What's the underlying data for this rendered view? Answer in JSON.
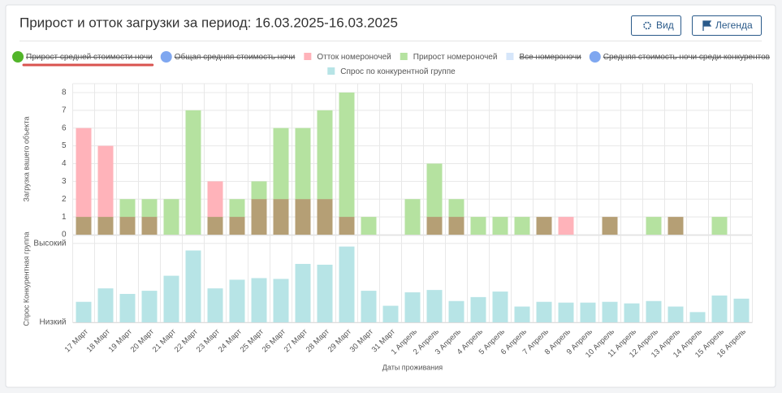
{
  "header": {
    "title": "Прирост и отток загрузки за период: 16.03.2025-16.03.2025",
    "buttons": [
      "Вид",
      "Легенда"
    ]
  },
  "chart_data": [
    {
      "type": "bar",
      "ylabel": "Загрузка вашего объекта",
      "ylim": [
        0,
        8.5
      ],
      "yticks": [
        0,
        1,
        2,
        3,
        4,
        5,
        6,
        7,
        8
      ],
      "grid": true,
      "series": [
        {
          "name": "Прирост средней стоимости ночи",
          "color": "#52b52a",
          "marker": "circle",
          "hidden": true
        },
        {
          "name": "Общая средняя стоимость ночи",
          "color": "#7fa7f0",
          "marker": "circle",
          "hidden": true
        },
        {
          "name": "Отток номероночей",
          "color": "#ffb3ba",
          "marker": "square",
          "values": [
            6,
            5,
            1,
            1,
            0,
            0,
            3,
            1,
            2,
            2,
            2,
            2,
            1,
            0,
            0,
            0,
            1,
            1,
            0,
            0,
            0,
            1,
            1,
            0,
            1,
            0,
            0,
            1,
            0,
            0,
            0
          ]
        },
        {
          "name": "Прирост номероночей",
          "color": "#b5e2a0",
          "marker": "square",
          "values": [
            1,
            1,
            2,
            2,
            2,
            7,
            1,
            2,
            3,
            6,
            6,
            7,
            8,
            1,
            0,
            2,
            4,
            2,
            1,
            1,
            1,
            1,
            0,
            0,
            1,
            0,
            1,
            1,
            0,
            1,
            0
          ]
        },
        {
          "name": "Все номероночи",
          "color": "#d6e6fa",
          "marker": "square",
          "hidden": true
        },
        {
          "name": "Средняя стоимость ночи среди конкурентов",
          "color": "#7fa7f0",
          "marker": "circle",
          "hidden": true
        }
      ]
    },
    {
      "type": "bar",
      "ylabel": "Спрос Конкурентная группа",
      "xlabel": "Даты проживания",
      "categories": [
        "17 Март",
        "18 Март",
        "19 Март",
        "20 Март",
        "21 Март",
        "22 Март",
        "23 Март",
        "24 Март",
        "25 Март",
        "26 Март",
        "27 Март",
        "28 Март",
        "29 Март",
        "30 Март",
        "31 Март",
        "1 Апрель",
        "2 Апрель",
        "3 Апрель",
        "4 Апрель",
        "5 Апрель",
        "6 Апрель",
        "7 Апрель",
        "8 Апрель",
        "9 Апрель",
        "10 Апрель",
        "11 Апрель",
        "12 Апрель",
        "13 Апрель",
        "14 Апрель",
        "15 Апрель",
        "16 Апрель"
      ],
      "ylim": [
        0,
        110
      ],
      "yticks": [
        {
          "value": 100,
          "label": "Высокий"
        },
        {
          "value": 0,
          "label": "Низкий"
        }
      ],
      "grid": true,
      "series": [
        {
          "name": "Спрос по конкурентной группе",
          "color": "#b7e4e6",
          "marker": "square",
          "values": [
            26,
            43,
            36,
            40,
            59,
            91,
            43,
            54,
            56,
            55,
            74,
            73,
            96,
            40,
            21,
            38,
            41,
            27,
            32,
            39,
            20,
            26,
            25,
            25,
            26,
            24,
            27,
            20,
            13,
            34,
            30
          ]
        }
      ]
    }
  ]
}
